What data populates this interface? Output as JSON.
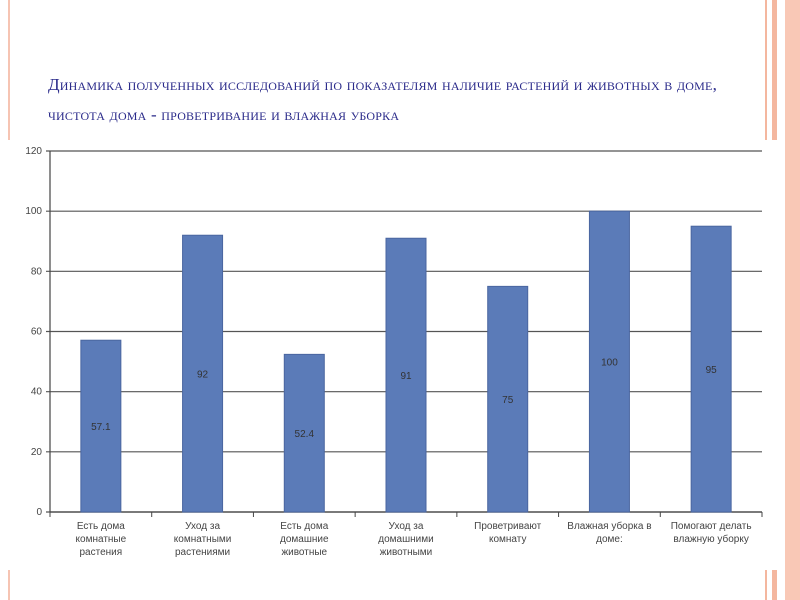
{
  "title": "Динамика полученных исследований по показателям наличие растений и животных в доме, чистота дома - проветривание и влажная уборка",
  "chart_data": {
    "type": "bar",
    "title": "Динамика полученных исследований по показателям наличие растений и животных в доме, чистота дома - проветривание и влажная уборка",
    "categories": [
      [
        "Есть дома",
        "комнатные",
        "растения"
      ],
      [
        "Уход за",
        "комнатными",
        "растениями"
      ],
      [
        "Есть дома",
        "домашние",
        "животные"
      ],
      [
        "Уход за",
        "домашними",
        "животными"
      ],
      [
        "Проветривают",
        "комнату"
      ],
      [
        "Влажная уборка в",
        "доме:"
      ],
      [
        "Помогают делать",
        "влажную уборку"
      ]
    ],
    "values": [
      57.1,
      92,
      52.4,
      91,
      75,
      100,
      95
    ],
    "data_labels": [
      "57.1",
      "92",
      "52.4",
      "91",
      "75",
      "100",
      "95"
    ],
    "xlabel": "",
    "ylabel": "",
    "ylim": [
      0,
      120
    ],
    "yticks": [
      0,
      20,
      40,
      60,
      80,
      100,
      120
    ],
    "grid": true,
    "legend": "none",
    "colors": {
      "bar": "#5b7bb8",
      "bar_edge": "#4a66a0",
      "grid": "#555555",
      "title": "#2a2a8a"
    }
  }
}
